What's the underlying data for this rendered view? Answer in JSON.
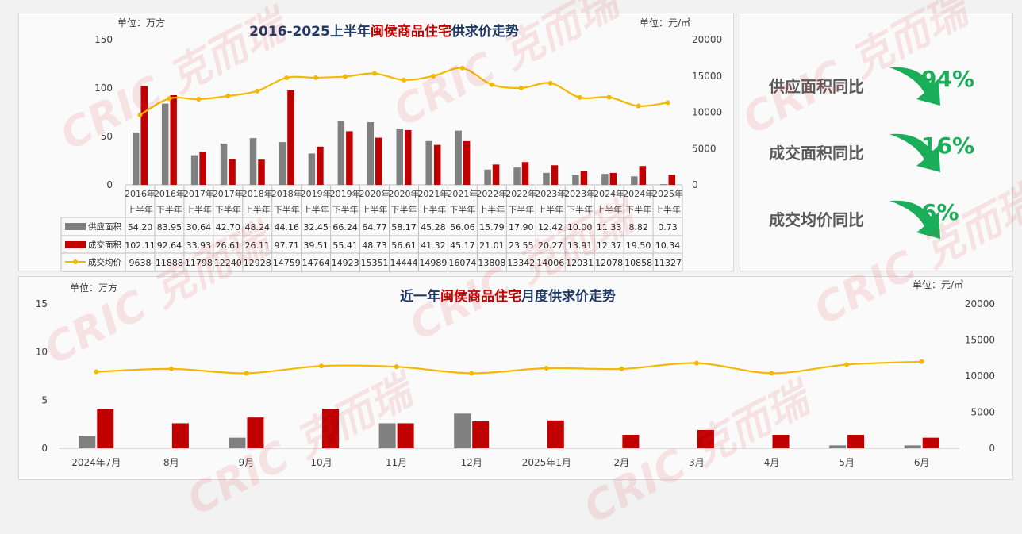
{
  "top_chart": {
    "title_parts": [
      "2016-2025上半年",
      "闽侯商品住宅",
      "供求价走势"
    ],
    "unit_left": "单位：万方",
    "unit_right": "单位：元/㎡",
    "colors": {
      "supply": "#808080",
      "deal": "#c00000",
      "price": "#f5b800",
      "title": "#1f3864",
      "highlight": "#c00000"
    },
    "chart_data": {
      "type": "bar",
      "title": "2016-2025上半年闽侯商品住宅供求价走势",
      "categories_year": [
        "2016年",
        "2016年",
        "2017年",
        "2017年",
        "2018年",
        "2018年",
        "2019年",
        "2019年",
        "2020年",
        "2020年",
        "2021年",
        "2021年",
        "2022年",
        "2022年",
        "2023年",
        "2023年",
        "2024年",
        "2024年",
        "2025年"
      ],
      "categories_half": [
        "上半年",
        "下半年",
        "上半年",
        "下半年",
        "上半年",
        "下半年",
        "上半年",
        "下半年",
        "上半年",
        "下半年",
        "上半年",
        "下半年",
        "上半年",
        "下半年",
        "上半年",
        "下半年",
        "上半年",
        "下半年",
        "上半年"
      ],
      "y_left_ticks": [
        "0",
        "50",
        "100",
        "150"
      ],
      "y_left_lim": [
        0,
        150
      ],
      "y_right_ticks": [
        "0",
        "5000",
        "10000",
        "15000",
        "20000"
      ],
      "y_right_lim": [
        0,
        20000
      ],
      "series": [
        {
          "name": "供应面积",
          "type": "bar",
          "values": [
            "54.20",
            "83.95",
            "30.64",
            "42.70",
            "48.24",
            "44.16",
            "32.45",
            "66.24",
            "64.77",
            "58.17",
            "45.28",
            "56.06",
            "15.79",
            "17.90",
            "12.42",
            "10.00",
            "11.33",
            "8.82",
            "0.73"
          ]
        },
        {
          "name": "成交面积",
          "type": "bar",
          "values": [
            "102.11",
            "92.64",
            "33.93",
            "26.61",
            "26.11",
            "97.71",
            "39.51",
            "55.41",
            "48.73",
            "56.61",
            "41.32",
            "45.17",
            "21.01",
            "23.55",
            "20.27",
            "13.91",
            "12.37",
            "19.50",
            "10.34"
          ]
        },
        {
          "name": "成交均价",
          "type": "line",
          "values": [
            "9638",
            "11888",
            "11798",
            "12240",
            "12928",
            "14759",
            "14764",
            "14923",
            "15351",
            "14444",
            "14989",
            "16074",
            "13808",
            "13342",
            "14006",
            "12031",
            "12078",
            "10858",
            "11327"
          ]
        }
      ]
    }
  },
  "kpis": [
    {
      "label": "供应面积同比",
      "value": "94%"
    },
    {
      "label": "成交面积同比",
      "value": "16%"
    },
    {
      "label": "成交均价同比",
      "value": "6%"
    }
  ],
  "bottom_chart": {
    "title_parts": [
      "近一年",
      "闽侯商品住宅",
      "月度供求价走势"
    ],
    "unit_left": "单位：万方",
    "unit_right": "单位：元/㎡",
    "chart_data": {
      "type": "bar",
      "title": "近一年闽侯商品住宅月度供求价走势",
      "categories": [
        "2024年7月",
        "8月",
        "9月",
        "10月",
        "11月",
        "12月",
        "2025年1月",
        "2月",
        "3月",
        "4月",
        "5月",
        "6月"
      ],
      "y_left_ticks": [
        "0",
        "5",
        "10",
        "15"
      ],
      "y_left_lim": [
        0,
        15
      ],
      "y_right_ticks": [
        "0",
        "5000",
        "10000",
        "15000",
        "20000"
      ],
      "y_right_lim": [
        0,
        20000
      ],
      "series": [
        {
          "type": "bar",
          "role": "supply",
          "values": [
            1.3,
            0,
            1.1,
            0,
            2.6,
            3.6,
            0,
            0,
            0,
            0,
            0.3,
            0.3
          ]
        },
        {
          "type": "bar",
          "role": "deal",
          "values": [
            4.1,
            2.6,
            3.2,
            4.1,
            2.6,
            2.8,
            2.9,
            1.4,
            1.9,
            1.4,
            1.4,
            1.1
          ]
        },
        {
          "type": "line",
          "role": "price",
          "values": [
            10600,
            11000,
            10400,
            11400,
            11300,
            10400,
            11100,
            11000,
            11800,
            10400,
            11600,
            12000
          ]
        }
      ]
    }
  },
  "watermark": {
    "text": "CRIC 克而瑞"
  }
}
